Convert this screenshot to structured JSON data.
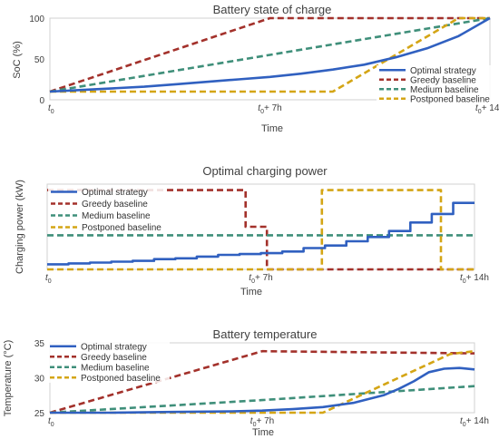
{
  "chart_data": [
    {
      "type": "line",
      "title": "Battery state of charge",
      "xlabel": "Time",
      "ylabel": "SoC (%)",
      "ylim": [
        0,
        100
      ],
      "yticks": [
        "0",
        "50",
        "100"
      ],
      "xtick_base": [
        "t",
        "t",
        "t"
      ],
      "xtick_sub": [
        "0",
        "0",
        "0"
      ],
      "xtick_suffix": [
        "",
        "+ 7h",
        "+ 14h"
      ],
      "xlim": [
        0,
        14
      ],
      "legend_position": "bottom-right",
      "series": [
        {
          "name": "Optimal strategy",
          "color": "#3060c0",
          "dash": "solid",
          "x": [
            0,
            1,
            2,
            3,
            4,
            5,
            6,
            7,
            8,
            9,
            10,
            11,
            12,
            13,
            14
          ],
          "values": [
            10,
            12,
            14,
            16,
            19,
            22,
            25,
            28,
            32,
            37,
            43,
            52,
            63,
            78,
            100
          ]
        },
        {
          "name": "Greedy baseline",
          "color": "#a3312b",
          "dash": "dashed",
          "x": [
            0,
            7,
            14
          ],
          "values": [
            10,
            100,
            100
          ]
        },
        {
          "name": "Medium baseline",
          "color": "#3f8f7a",
          "dash": "dashed",
          "x": [
            0,
            14
          ],
          "values": [
            10,
            100
          ]
        },
        {
          "name": "Postponed baseline",
          "color": "#d4a515",
          "dash": "dashed",
          "x": [
            0,
            9,
            13,
            14
          ],
          "values": [
            10,
            10,
            100,
            100
          ]
        }
      ]
    },
    {
      "type": "line",
      "title": "Optimal charging power",
      "xlabel": "Time",
      "ylabel": "Charging power (kW)",
      "ylim": [
        0,
        1
      ],
      "xtick_base": [
        "t",
        "t",
        "t"
      ],
      "xtick_sub": [
        "0",
        "0",
        "0"
      ],
      "xtick_suffix": [
        "",
        "+ 7h",
        "+ 14h"
      ],
      "xlim": [
        0,
        14
      ],
      "legend_position": "top-left",
      "series": [
        {
          "name": "Optimal strategy",
          "color": "#3060c0",
          "dash": "solid",
          "step": true,
          "x": [
            0,
            0.7,
            1.4,
            2.1,
            2.8,
            3.5,
            4.2,
            4.9,
            5.6,
            6.3,
            7,
            7.7,
            8.4,
            9.1,
            9.8,
            10.5,
            11.2,
            11.9,
            12.6,
            13.3,
            14
          ],
          "values": [
            0.06,
            0.07,
            0.08,
            0.09,
            0.1,
            0.12,
            0.13,
            0.15,
            0.17,
            0.18,
            0.19,
            0.21,
            0.25,
            0.28,
            0.33,
            0.38,
            0.45,
            0.55,
            0.65,
            0.78,
            0.78
          ]
        },
        {
          "name": "Greedy baseline",
          "color": "#a3312b",
          "dash": "dashed",
          "x": [
            0,
            6.5,
            6.5,
            7.2,
            7.2,
            14
          ],
          "values": [
            0.93,
            0.93,
            0.5,
            0.5,
            0,
            0
          ]
        },
        {
          "name": "Medium baseline",
          "color": "#3f8f7a",
          "dash": "dashed",
          "x": [
            0,
            14
          ],
          "values": [
            0.4,
            0.4
          ]
        },
        {
          "name": "Postponed baseline",
          "color": "#d4a515",
          "dash": "dashed",
          "x": [
            0,
            9,
            9,
            12.9,
            12.9,
            14
          ],
          "values": [
            0,
            0,
            0.93,
            0.93,
            0,
            0
          ]
        }
      ]
    },
    {
      "type": "line",
      "title": "Battery temperature",
      "xlabel": "Time",
      "ylabel": "Temperature (°C)",
      "ylim": [
        25,
        35
      ],
      "yticks": [
        "25",
        "30",
        "35"
      ],
      "xtick_base": [
        "t",
        "t",
        "t"
      ],
      "xtick_sub": [
        "0",
        "0",
        "0"
      ],
      "xtick_suffix": [
        "",
        "+ 7h",
        "+ 14h"
      ],
      "xlim": [
        0,
        14
      ],
      "legend_position": "top-left",
      "series": [
        {
          "name": "Optimal strategy",
          "color": "#3060c0",
          "dash": "solid",
          "x": [
            0,
            2,
            4,
            6,
            7,
            8,
            9,
            10,
            11,
            11.5,
            12,
            12.5,
            13,
            13.5,
            14
          ],
          "values": [
            25,
            25,
            25.1,
            25.2,
            25.3,
            25.5,
            25.8,
            26.4,
            27.5,
            28.4,
            29.5,
            30.8,
            31.3,
            31.4,
            31.2
          ]
        },
        {
          "name": "Greedy baseline",
          "color": "#a3312b",
          "dash": "dashed",
          "x": [
            0,
            7,
            14
          ],
          "values": [
            25,
            33.8,
            33.5
          ]
        },
        {
          "name": "Medium baseline",
          "color": "#3f8f7a",
          "dash": "dashed",
          "x": [
            0,
            7,
            14
          ],
          "values": [
            25,
            26.8,
            28.8
          ]
        },
        {
          "name": "Postponed baseline",
          "color": "#d4a515",
          "dash": "dashed",
          "x": [
            0,
            9,
            13.2,
            14
          ],
          "values": [
            25,
            25,
            33.4,
            33.8
          ]
        }
      ]
    }
  ]
}
